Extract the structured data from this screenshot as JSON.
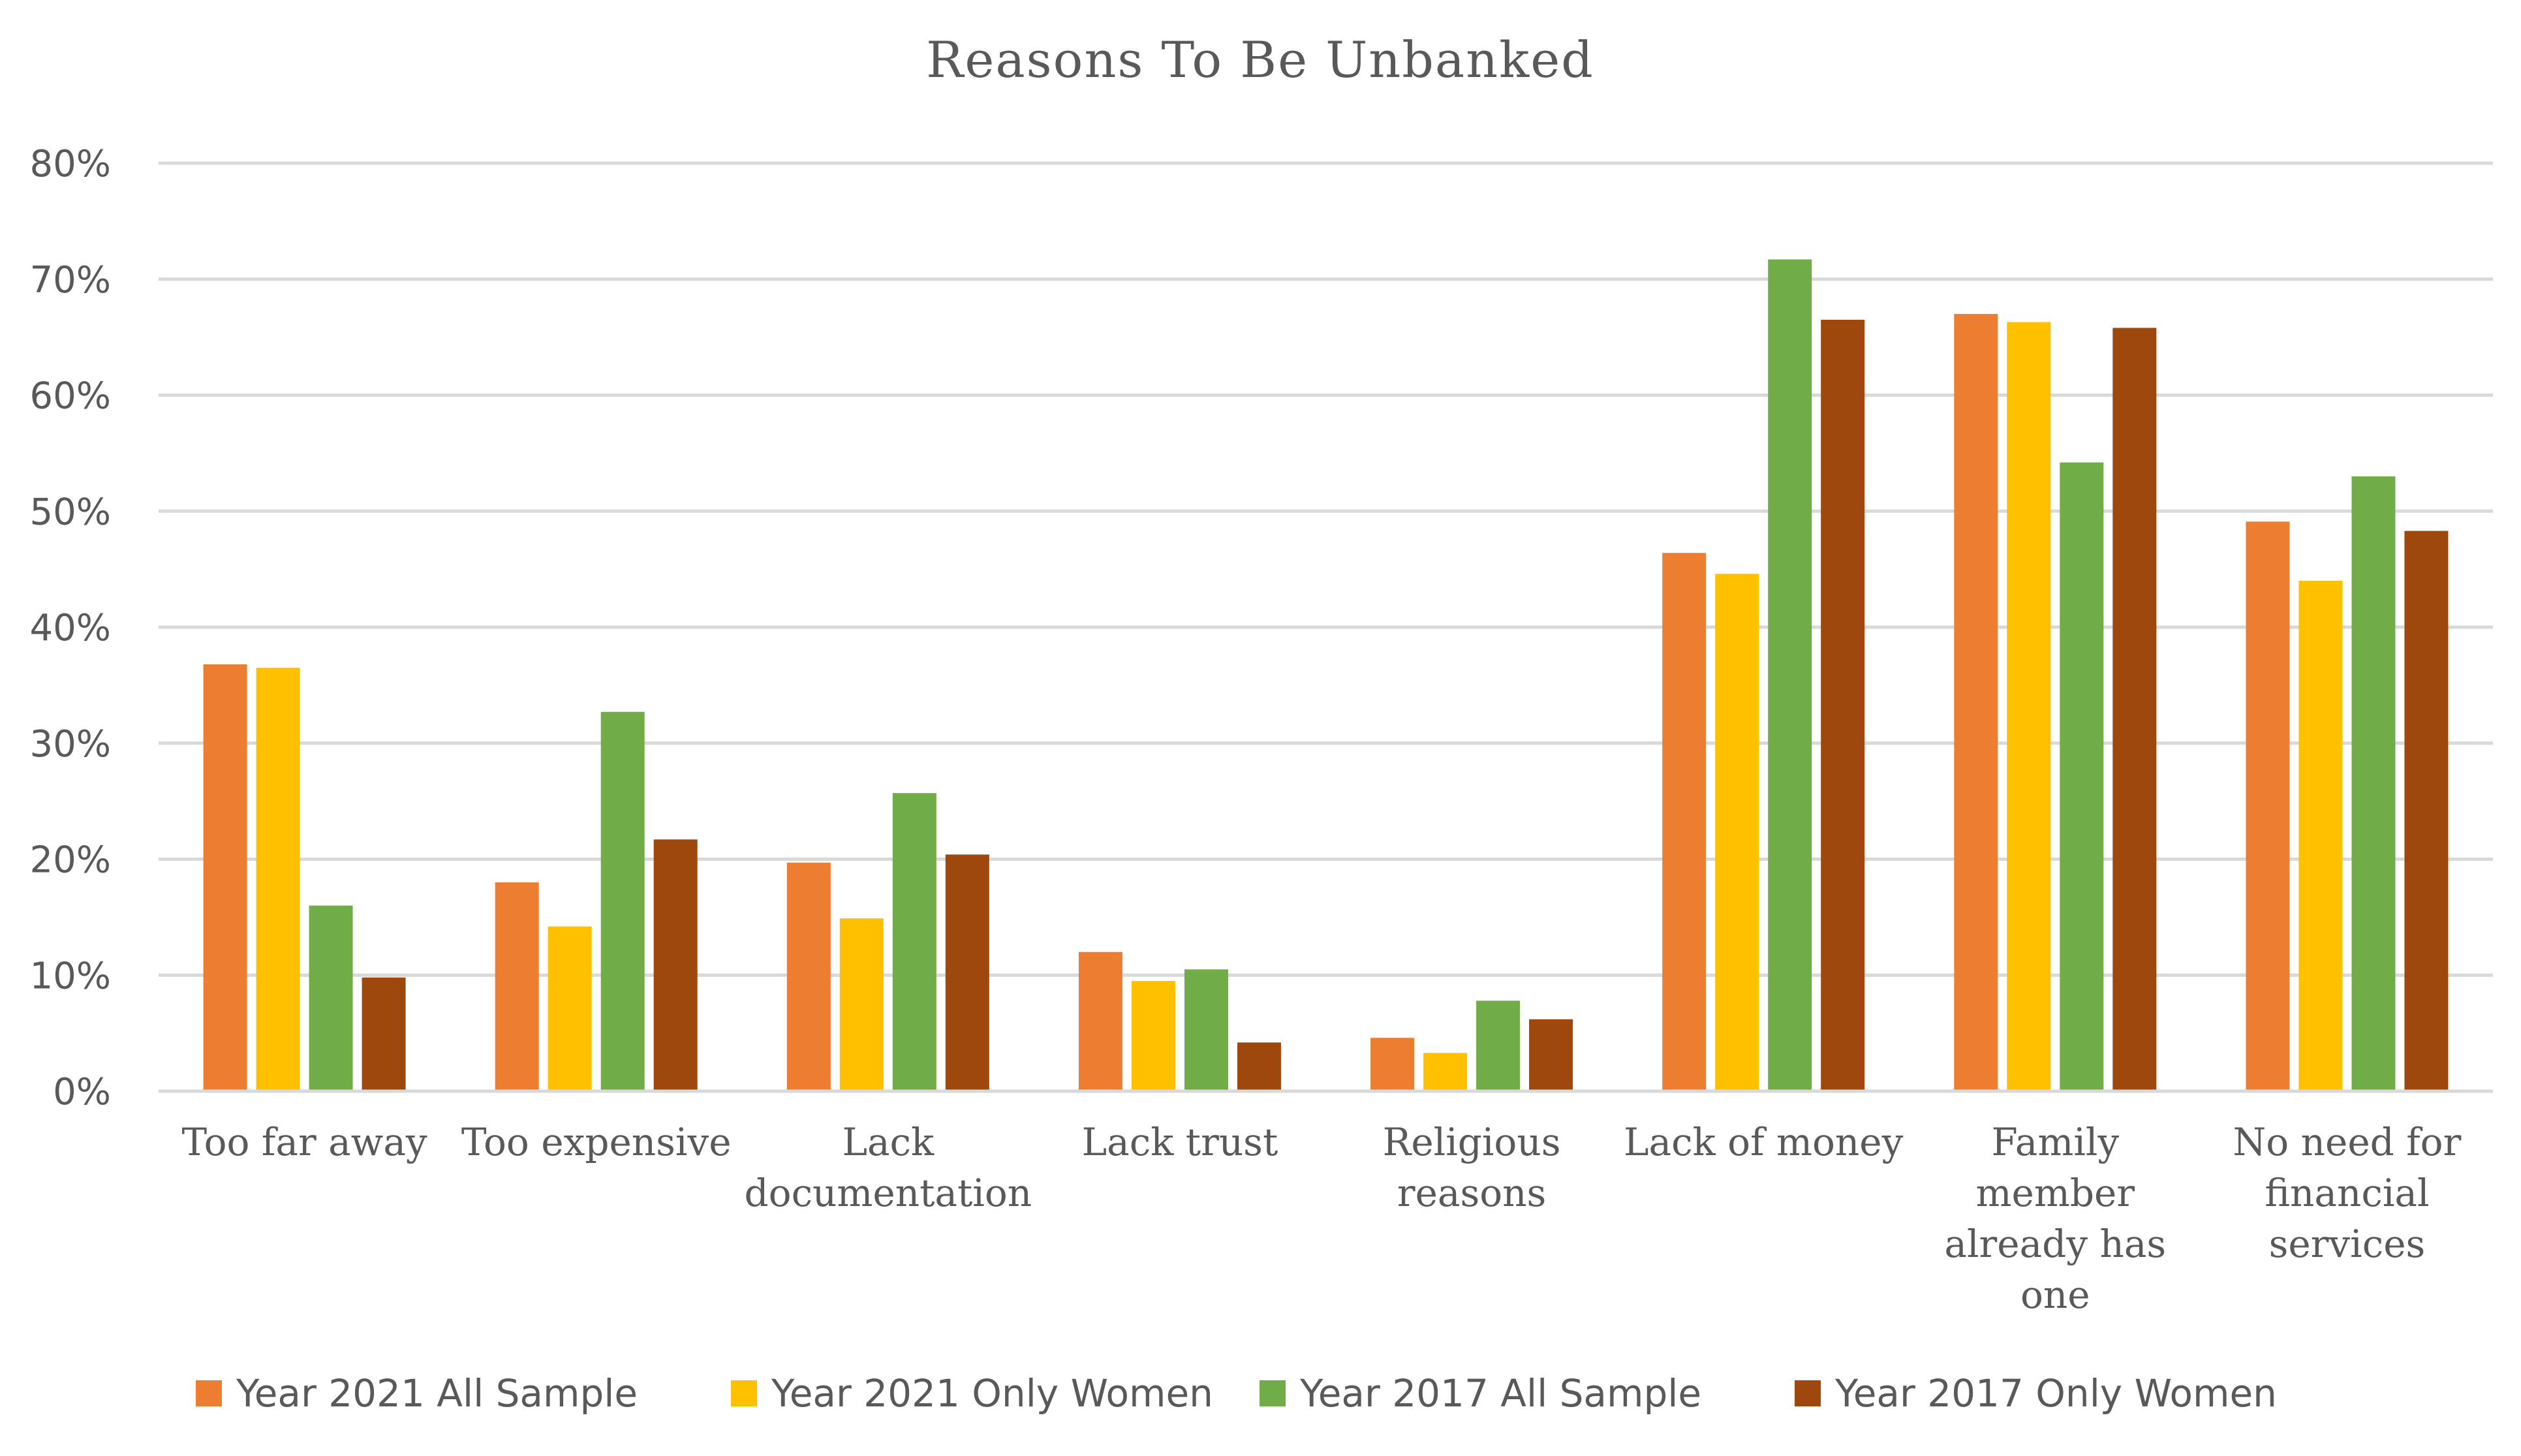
{
  "chart_data": {
    "type": "bar",
    "title": "Reasons To Be Unbanked",
    "xlabel": "",
    "ylabel": "",
    "ylim": [
      0,
      80
    ],
    "y_ticks": [
      "0%",
      "10%",
      "20%",
      "30%",
      "40%",
      "50%",
      "60%",
      "70%",
      "80%"
    ],
    "grid": true,
    "legend_position": "bottom",
    "categories": [
      [
        "Too far away"
      ],
      [
        "Too expensive"
      ],
      [
        "Lack",
        "documentation"
      ],
      [
        "Lack trust"
      ],
      [
        "Religious",
        "reasons"
      ],
      [
        "Lack of money"
      ],
      [
        "Family",
        "member",
        "already has",
        "one"
      ],
      [
        "No need for",
        "financial",
        "services"
      ]
    ],
    "series": [
      {
        "name": "Year 2021 All Sample",
        "color": "#ED7D31",
        "values": [
          36.8,
          18.0,
          19.7,
          12.0,
          4.6,
          46.4,
          67.0,
          49.1
        ]
      },
      {
        "name": "Year 2021 Only Women",
        "color": "#FFC000",
        "values": [
          36.5,
          14.2,
          14.9,
          9.5,
          3.3,
          44.6,
          66.3,
          44.0
        ]
      },
      {
        "name": "Year 2017 All Sample",
        "color": "#70AD47",
        "values": [
          16.0,
          32.7,
          25.7,
          10.5,
          7.8,
          71.7,
          54.2,
          53.0
        ]
      },
      {
        "name": "Year 2017 Only Women",
        "color": "#9E480E",
        "values": [
          9.8,
          21.7,
          20.4,
          4.2,
          6.2,
          66.5,
          65.8,
          48.3
        ]
      }
    ]
  }
}
